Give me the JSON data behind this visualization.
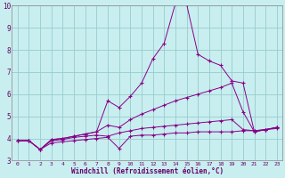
{
  "xlabel": "Windchill (Refroidissement éolien,°C)",
  "xlim": [
    -0.5,
    23.5
  ],
  "ylim": [
    3,
    10
  ],
  "yticks": [
    3,
    4,
    5,
    6,
    7,
    8,
    9,
    10
  ],
  "xticks": [
    0,
    1,
    2,
    3,
    4,
    5,
    6,
    7,
    8,
    9,
    10,
    11,
    12,
    13,
    14,
    15,
    16,
    17,
    18,
    19,
    20,
    21,
    22,
    23
  ],
  "background_color": "#c8eef0",
  "grid_color": "#99cccc",
  "line_color": "#880088",
  "lines": [
    {
      "x": [
        0,
        1,
        2,
        3,
        4,
        5,
        6,
        7,
        8,
        9,
        10,
        11,
        12,
        13,
        14,
        15,
        16,
        17,
        18,
        19,
        20,
        21,
        22,
        23
      ],
      "y": [
        3.9,
        3.9,
        3.5,
        3.8,
        3.85,
        3.9,
        3.95,
        4.0,
        4.05,
        3.55,
        4.1,
        4.15,
        4.15,
        4.2,
        4.25,
        4.25,
        4.3,
        4.3,
        4.3,
        4.3,
        4.35,
        4.35,
        4.4,
        4.45
      ]
    },
    {
      "x": [
        0,
        1,
        2,
        3,
        4,
        5,
        6,
        7,
        8,
        9,
        10,
        11,
        12,
        13,
        14,
        15,
        16,
        17,
        18,
        19,
        20,
        21,
        22,
        23
      ],
      "y": [
        3.9,
        3.9,
        3.5,
        3.9,
        3.95,
        4.05,
        4.1,
        4.15,
        4.1,
        4.25,
        4.35,
        4.45,
        4.5,
        4.55,
        4.6,
        4.65,
        4.7,
        4.75,
        4.8,
        4.85,
        4.4,
        4.35,
        4.4,
        4.5
      ]
    },
    {
      "x": [
        0,
        1,
        2,
        3,
        4,
        5,
        6,
        7,
        8,
        9,
        10,
        11,
        12,
        13,
        14,
        15,
        16,
        17,
        18,
        19,
        20,
        21,
        22,
        23
      ],
      "y": [
        3.9,
        3.9,
        3.5,
        3.95,
        4.0,
        4.1,
        4.2,
        4.3,
        4.6,
        4.5,
        4.85,
        5.1,
        5.3,
        5.5,
        5.7,
        5.85,
        6.0,
        6.15,
        6.3,
        6.5,
        5.2,
        4.3,
        4.4,
        4.5
      ]
    },
    {
      "x": [
        0,
        1,
        2,
        3,
        4,
        5,
        6,
        7,
        8,
        9,
        10,
        11,
        12,
        13,
        14,
        15,
        16,
        17,
        18,
        19,
        20,
        21,
        22,
        23
      ],
      "y": [
        3.9,
        3.9,
        3.5,
        3.95,
        4.0,
        4.1,
        4.2,
        4.3,
        5.7,
        5.4,
        5.9,
        6.5,
        7.6,
        8.3,
        10.1,
        10.05,
        7.8,
        7.5,
        7.3,
        6.6,
        6.5,
        4.3,
        4.4,
        4.5
      ]
    }
  ]
}
